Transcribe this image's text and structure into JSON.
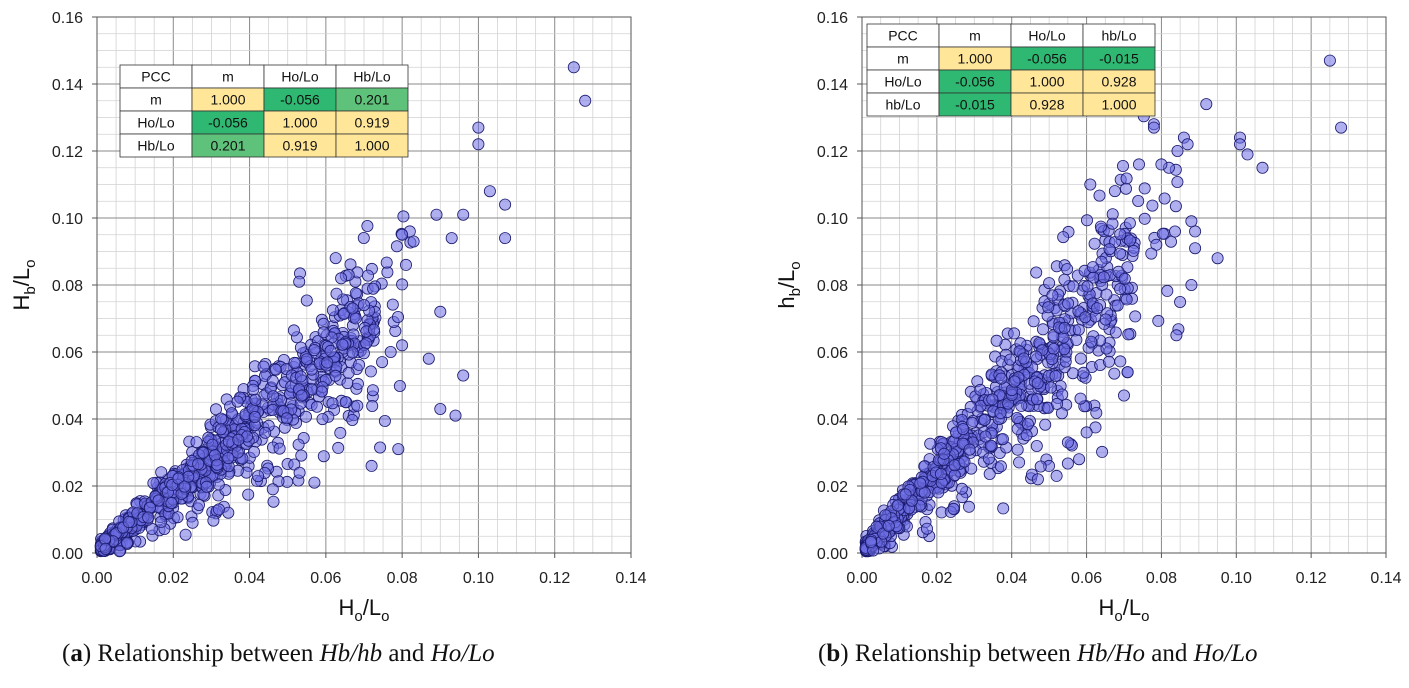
{
  "chart_data": [
    {
      "type": "scatter",
      "panel": "a",
      "xlabel": "Ho/Lo",
      "ylabel": "Hb/Lo",
      "xlim": [
        0,
        0.14
      ],
      "ylim": [
        0,
        0.16
      ],
      "xticks": [
        "0.00",
        "0.02",
        "0.04",
        "0.06",
        "0.08",
        "0.10",
        "0.12",
        "0.14"
      ],
      "yticks": [
        "0.00",
        "0.02",
        "0.04",
        "0.06",
        "0.08",
        "0.10",
        "0.12",
        "0.14",
        "0.16"
      ],
      "grid": true,
      "marker_color": "#6f6fe6",
      "seed": 11,
      "trend": {
        "core_slope": 0.98,
        "core_spread": 0.14,
        "low_slope_min": 0.35,
        "low_frac": 0.17,
        "n": 900
      },
      "points": [
        [
          0.125,
          0.145
        ],
        [
          0.128,
          0.135
        ],
        [
          0.1,
          0.127
        ],
        [
          0.1,
          0.122
        ],
        [
          0.103,
          0.108
        ],
        [
          0.107,
          0.104
        ],
        [
          0.107,
          0.094
        ],
        [
          0.096,
          0.101
        ],
        [
          0.089,
          0.101
        ],
        [
          0.093,
          0.094
        ],
        [
          0.082,
          0.096
        ],
        [
          0.083,
          0.093
        ],
        [
          0.08,
          0.095
        ],
        [
          0.081,
          0.086
        ],
        [
          0.09,
          0.072
        ],
        [
          0.096,
          0.053
        ],
        [
          0.094,
          0.041
        ],
        [
          0.09,
          0.043
        ],
        [
          0.087,
          0.058
        ],
        [
          0.079,
          0.031
        ],
        [
          0.072,
          0.026
        ],
        [
          0.057,
          0.021
        ],
        [
          0.053,
          0.081
        ],
        [
          0.066,
          0.083
        ],
        [
          0.064,
          0.082
        ],
        [
          0.07,
          0.074
        ],
        [
          0.08,
          0.062
        ],
        [
          0.077,
          0.06
        ]
      ],
      "table": {
        "header": [
          "PCC",
          "m",
          "Ho/Lo",
          "Hb/Lo"
        ],
        "rows": [
          [
            "m",
            "1.000",
            "-0.056",
            "0.201"
          ],
          [
            "Ho/Lo",
            "-0.056",
            "1.000",
            "0.919"
          ],
          [
            "Hb/Lo",
            "0.201",
            "0.919",
            "1.000"
          ]
        ],
        "colors": [
          [
            "#ffe699",
            "#2eb872",
            "#5fc27a"
          ],
          [
            "#2eb872",
            "#ffe699",
            "#ffe699"
          ],
          [
            "#5fc27a",
            "#ffe699",
            "#ffe699"
          ]
        ]
      }
    },
    {
      "type": "scatter",
      "panel": "b",
      "xlabel": "Ho/Lo",
      "ylabel": "hb/Lo",
      "xlim": [
        0,
        0.14
      ],
      "ylim": [
        0,
        0.16
      ],
      "xticks": [
        "0.00",
        "0.02",
        "0.04",
        "0.06",
        "0.08",
        "0.10",
        "0.12",
        "0.14"
      ],
      "yticks": [
        "0.00",
        "0.02",
        "0.04",
        "0.06",
        "0.08",
        "0.10",
        "0.12",
        "0.14",
        "0.16"
      ],
      "grid": true,
      "marker_color": "#6f6fe6",
      "seed": 23,
      "trend": {
        "core_slope": 1.22,
        "core_spread": 0.16,
        "low_slope_min": 0.45,
        "low_frac": 0.14,
        "n": 850
      },
      "points": [
        [
          0.125,
          0.147
        ],
        [
          0.128,
          0.127
        ],
        [
          0.101,
          0.124
        ],
        [
          0.101,
          0.122
        ],
        [
          0.103,
          0.119
        ],
        [
          0.107,
          0.115
        ],
        [
          0.092,
          0.134
        ],
        [
          0.078,
          0.128
        ],
        [
          0.078,
          0.127
        ],
        [
          0.086,
          0.124
        ],
        [
          0.087,
          0.122
        ],
        [
          0.082,
          0.115
        ],
        [
          0.08,
          0.116
        ],
        [
          0.095,
          0.088
        ],
        [
          0.089,
          0.096
        ],
        [
          0.088,
          0.099
        ],
        [
          0.089,
          0.091
        ],
        [
          0.088,
          0.08
        ],
        [
          0.084,
          0.065
        ],
        [
          0.061,
          0.11
        ],
        [
          0.074,
          0.116
        ],
        [
          0.071,
          0.054
        ],
        [
          0.07,
          0.047
        ],
        [
          0.052,
          0.023
        ],
        [
          0.047,
          0.022
        ],
        [
          0.058,
          0.028
        ],
        [
          0.06,
          0.036
        ],
        [
          0.055,
          0.033
        ]
      ],
      "table": {
        "header": [
          "PCC",
          "m",
          "Ho/Lo",
          "hb/Lo"
        ],
        "rows": [
          [
            "m",
            "1.000",
            "-0.056",
            "-0.015"
          ],
          [
            "Ho/Lo",
            "-0.056",
            "1.000",
            "0.928"
          ],
          [
            "hb/Lo",
            "-0.015",
            "0.928",
            "1.000"
          ]
        ],
        "colors": [
          [
            "#ffe699",
            "#2eb872",
            "#2eb872"
          ],
          [
            "#2eb872",
            "#ffe699",
            "#ffe699"
          ],
          [
            "#2eb872",
            "#ffe699",
            "#ffe699"
          ]
        ]
      }
    }
  ],
  "captions": {
    "a_letter": "a",
    "a_text": "Relationship between",
    "a_expr1": "Hb/hb",
    "a_and": "and",
    "a_expr2": "Ho/Lo",
    "b_letter": "b",
    "b_text": "Relationship between",
    "b_expr1": "Hb/Ho",
    "b_and": "and",
    "b_expr2": "Ho/Lo"
  }
}
